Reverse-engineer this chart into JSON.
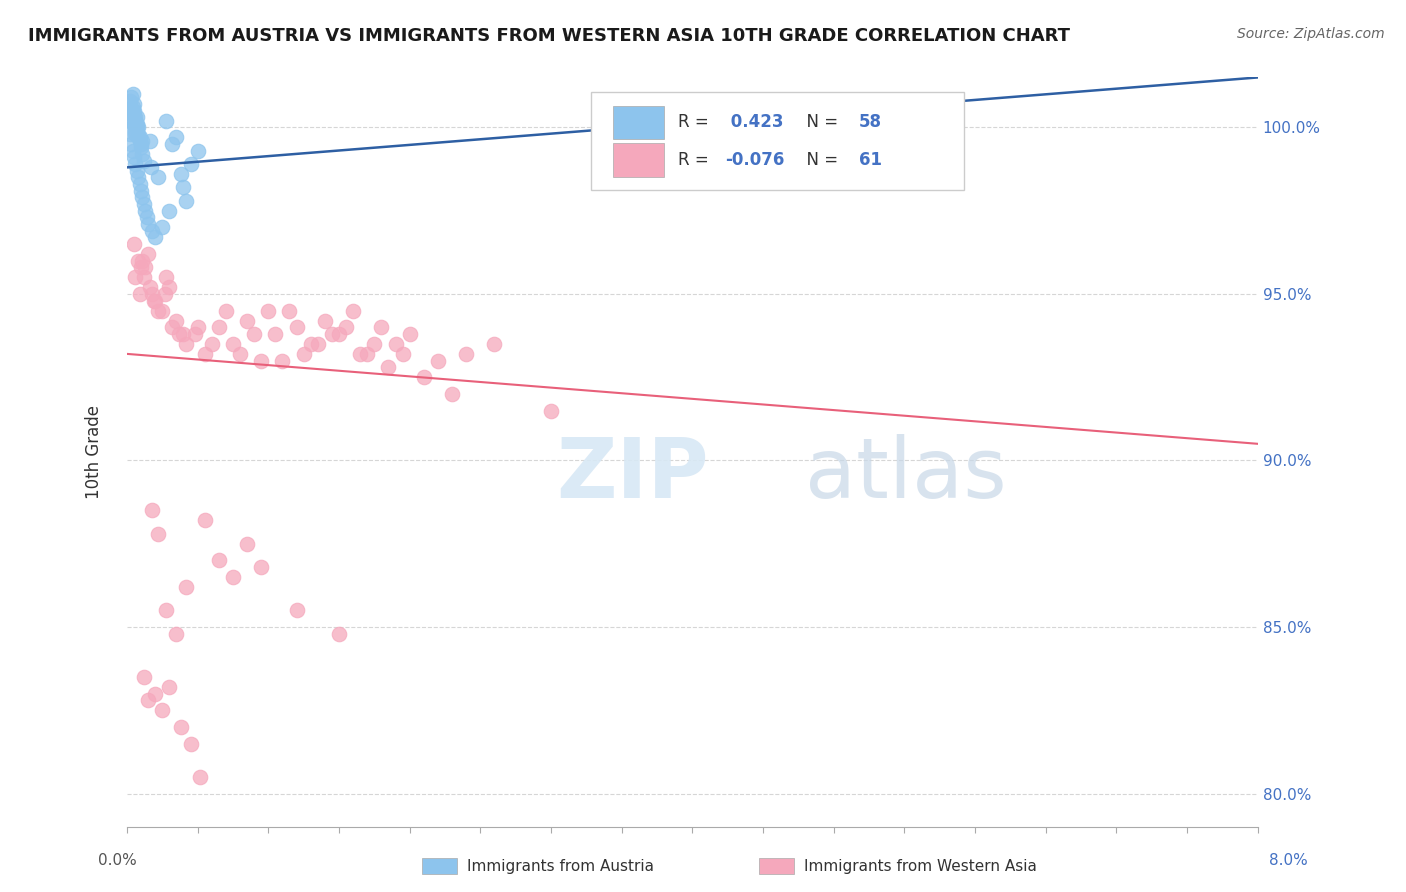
{
  "title": "IMMIGRANTS FROM AUSTRIA VS IMMIGRANTS FROM WESTERN ASIA 10TH GRADE CORRELATION CHART",
  "source": "Source: ZipAtlas.com",
  "ylabel": "10th Grade",
  "yticks": [
    80.0,
    85.0,
    90.0,
    95.0,
    100.0
  ],
  "ytick_labels": [
    "80.0%",
    "85.0%",
    "90.0%",
    "95.0%",
    "100.0%"
  ],
  "xmin": 0.0,
  "xmax": 8.0,
  "ymin": 79.0,
  "ymax": 101.5,
  "austria_color": "#8DC4ED",
  "western_asia_color": "#F5A8BC",
  "austria_line_color": "#2E5FA3",
  "western_asia_line_color": "#E8607A",
  "bottom_label_left": "Immigrants from Austria",
  "bottom_label_right": "Immigrants from Western Asia",
  "austria_R": 0.423,
  "austria_N": 58,
  "western_asia_R": -0.076,
  "western_asia_N": 61,
  "austria_points_x": [
    0.02,
    0.03,
    0.04,
    0.05,
    0.06,
    0.07,
    0.08,
    0.09,
    0.1,
    0.11,
    0.03,
    0.04,
    0.05,
    0.06,
    0.07,
    0.08,
    0.09,
    0.1,
    0.11,
    0.12,
    0.02,
    0.03,
    0.04,
    0.05,
    0.06,
    0.07,
    0.08,
    0.04,
    0.05,
    0.06,
    0.03,
    0.04,
    0.05,
    0.06,
    0.07,
    0.08,
    0.09,
    0.1,
    0.11,
    0.12,
    0.13,
    0.14,
    0.15,
    0.18,
    0.2,
    0.25,
    0.3,
    0.22,
    0.16,
    0.17,
    0.4,
    0.45,
    0.5,
    0.35,
    0.28,
    0.32,
    0.38,
    0.42
  ],
  "austria_points_y": [
    99.8,
    100.2,
    100.5,
    100.1,
    99.9,
    100.3,
    100.0,
    99.7,
    99.5,
    99.6,
    100.4,
    100.6,
    100.7,
    100.3,
    100.1,
    99.8,
    99.6,
    99.4,
    99.2,
    99.0,
    100.8,
    100.9,
    101.0,
    100.5,
    100.2,
    100.0,
    99.7,
    100.4,
    100.1,
    99.8,
    99.5,
    99.3,
    99.1,
    98.9,
    98.7,
    98.5,
    98.3,
    98.1,
    97.9,
    97.7,
    97.5,
    97.3,
    97.1,
    96.9,
    96.7,
    97.0,
    97.5,
    98.5,
    99.6,
    98.8,
    98.2,
    98.9,
    99.3,
    99.7,
    100.2,
    99.5,
    98.6,
    97.8
  ],
  "western_asia_points_x": [
    0.05,
    0.08,
    0.1,
    0.12,
    0.15,
    0.18,
    0.2,
    0.25,
    0.3,
    0.35,
    0.4,
    0.5,
    0.6,
    0.7,
    0.8,
    0.9,
    1.0,
    1.1,
    1.2,
    1.3,
    1.4,
    1.5,
    1.6,
    1.7,
    1.8,
    1.9,
    2.0,
    2.2,
    2.4,
    2.6,
    0.06,
    0.09,
    0.11,
    0.13,
    0.16,
    0.19,
    0.22,
    0.27,
    0.32,
    0.37,
    0.42,
    0.48,
    0.55,
    0.65,
    0.75,
    0.85,
    0.95,
    1.05,
    1.15,
    1.25,
    1.35,
    1.45,
    1.55,
    1.65,
    1.75,
    1.85,
    1.95,
    2.1,
    2.3,
    0.28,
    3.0
  ],
  "western_asia_points_y": [
    96.5,
    96.0,
    95.8,
    95.5,
    96.2,
    95.0,
    94.8,
    94.5,
    95.2,
    94.2,
    93.8,
    94.0,
    93.5,
    94.5,
    93.2,
    93.8,
    94.5,
    93.0,
    94.0,
    93.5,
    94.2,
    93.8,
    94.5,
    93.2,
    94.0,
    93.5,
    93.8,
    93.0,
    93.2,
    93.5,
    95.5,
    95.0,
    96.0,
    95.8,
    95.2,
    94.8,
    94.5,
    95.0,
    94.0,
    93.8,
    93.5,
    93.8,
    93.2,
    94.0,
    93.5,
    94.2,
    93.0,
    93.8,
    94.5,
    93.2,
    93.5,
    93.8,
    94.0,
    93.2,
    93.5,
    92.8,
    93.2,
    92.5,
    92.0,
    95.5,
    91.5
  ],
  "western_asia_outliers_x": [
    0.18,
    0.22,
    0.28,
    0.35,
    0.55,
    0.65,
    0.75,
    1.2,
    1.5,
    0.42,
    0.85,
    0.95,
    0.12,
    0.15,
    0.2,
    0.25,
    0.3,
    0.38,
    0.45,
    0.52
  ],
  "western_asia_outliers_y": [
    88.5,
    87.8,
    85.5,
    84.8,
    88.2,
    87.0,
    86.5,
    85.5,
    84.8,
    86.2,
    87.5,
    86.8,
    83.5,
    82.8,
    83.0,
    82.5,
    83.2,
    82.0,
    81.5,
    80.5
  ]
}
